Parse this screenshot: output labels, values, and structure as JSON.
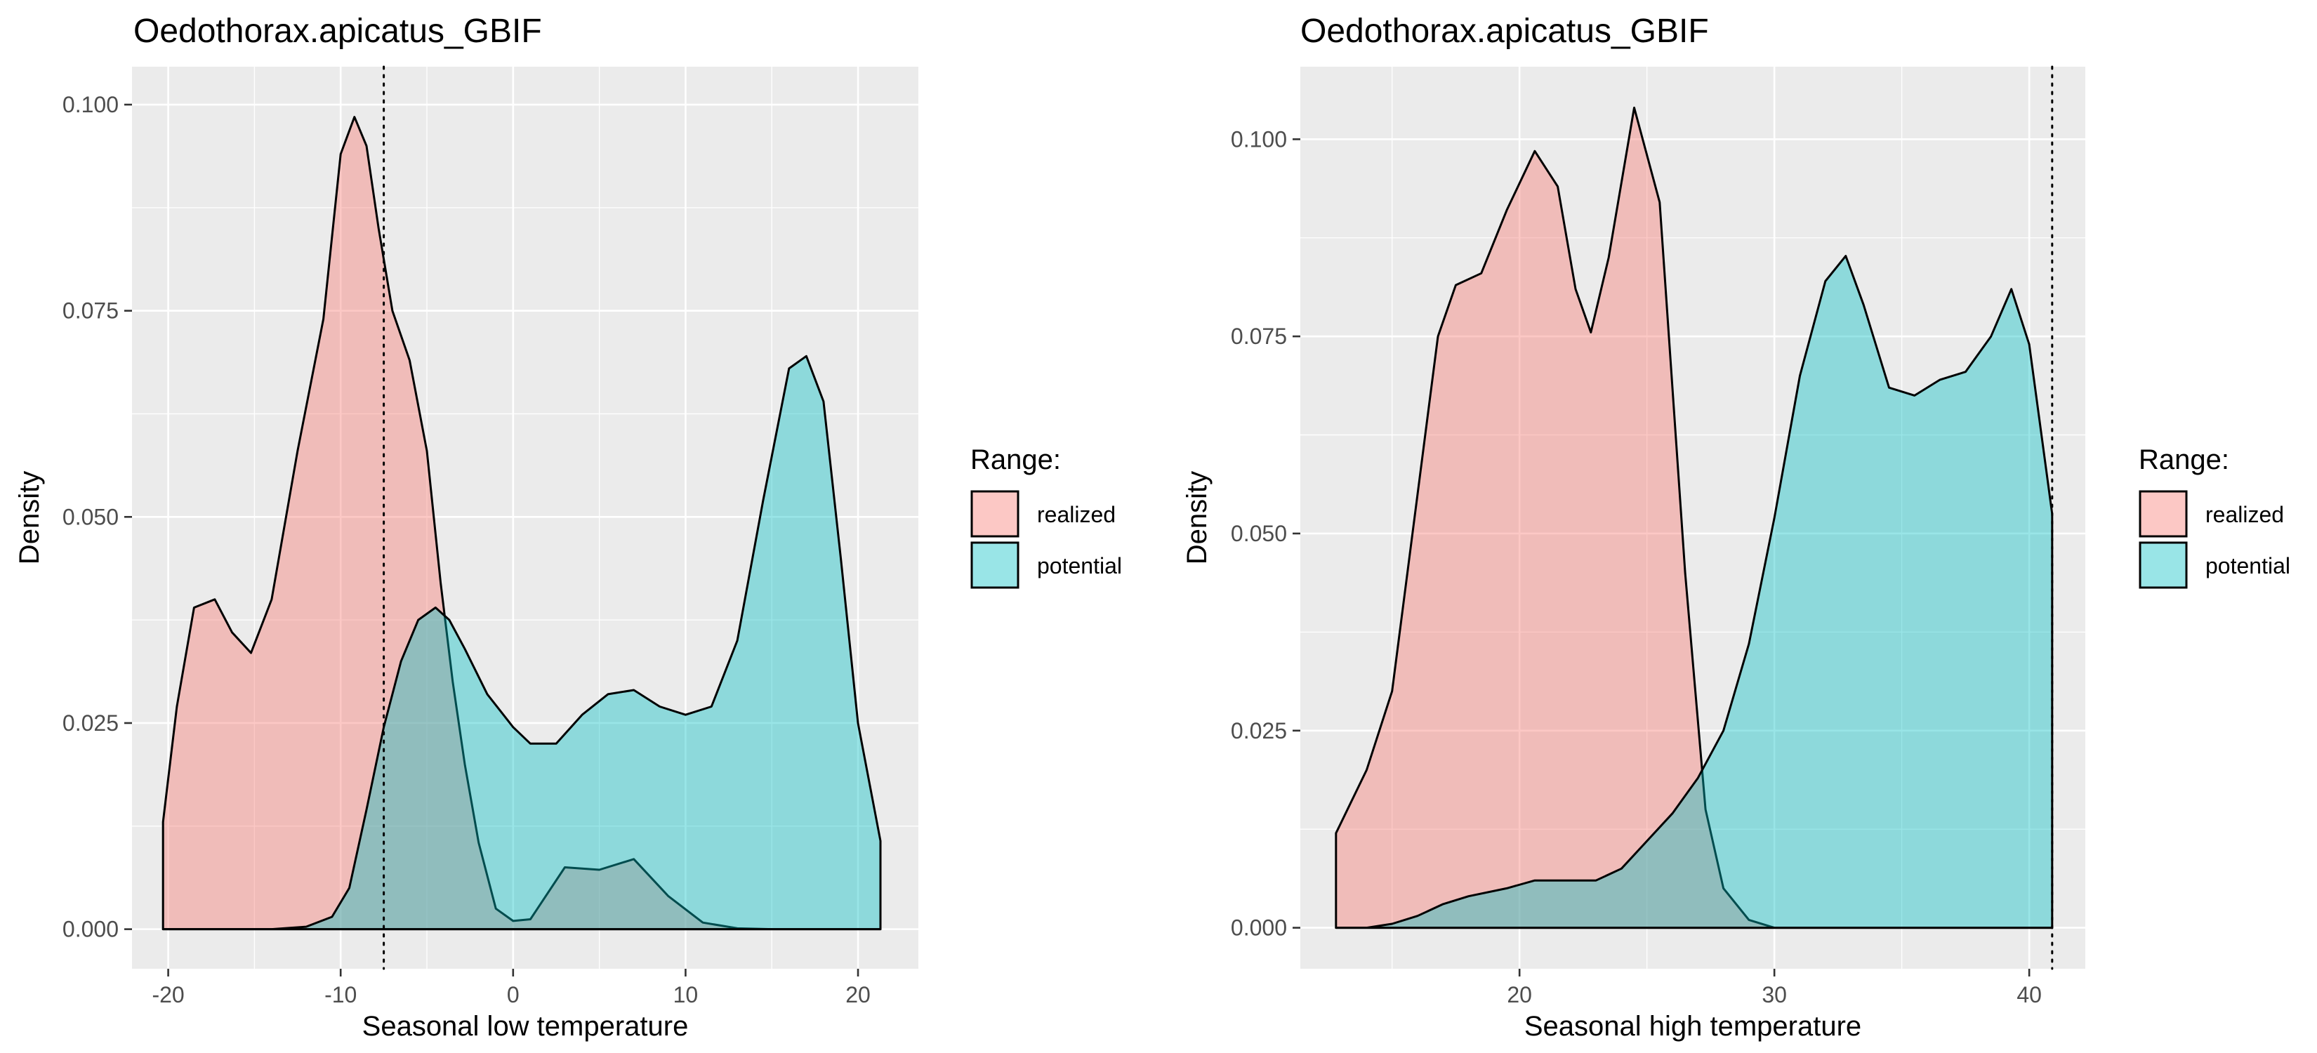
{
  "colors": {
    "realized": "#F8766D",
    "potential": "#00BFC4",
    "panel": "#EBEBEB",
    "grid": "#FFFFFF"
  },
  "chart_data": [
    {
      "type": "area",
      "title": "Oedothorax.apicatus_GBIF",
      "xlabel": "Seasonal low temperature",
      "ylabel": "Density",
      "xlim": [
        -22.1,
        23.5
      ],
      "ylim": [
        -0.0048,
        0.1046
      ],
      "x_ticks": [
        -20,
        -10,
        0,
        10,
        20
      ],
      "x_tick_labels": [
        "-20",
        "-10",
        "0",
        "10",
        "20"
      ],
      "y_ticks": [
        0,
        0.025,
        0.05,
        0.075,
        0.1
      ],
      "y_tick_labels": [
        "0.000",
        "0.025",
        "0.050",
        "0.075",
        "0.100"
      ],
      "grid": true,
      "vline": -7.5,
      "legend": {
        "title": "Range:",
        "position": "right",
        "entries": [
          "realized",
          "potential"
        ]
      },
      "series": [
        {
          "name": "realized",
          "x": [
            -20.3,
            -19.5,
            -18.5,
            -17.3,
            -16.3,
            -15.2,
            -14,
            -12.5,
            -11,
            -10,
            -9.2,
            -8.5,
            -7.8,
            -7,
            -6,
            -5,
            -4.2,
            -3.5,
            -2.8,
            -2,
            -1,
            0,
            1,
            3,
            5,
            7,
            9,
            11,
            13,
            15,
            17,
            19,
            21.3
          ],
          "y": [
            0.013,
            0.027,
            0.039,
            0.04,
            0.036,
            0.0335,
            0.04,
            0.058,
            0.074,
            0.094,
            0.0985,
            0.095,
            0.085,
            0.075,
            0.069,
            0.058,
            0.042,
            0.03,
            0.02,
            0.0105,
            0.0025,
            0.001,
            0.0012,
            0.0075,
            0.0072,
            0.0085,
            0.004,
            0.0008,
            0.0001,
            0,
            0,
            0,
            0
          ]
        },
        {
          "name": "potential",
          "x": [
            -20.3,
            -16,
            -14,
            -12,
            -10.5,
            -9.5,
            -8.5,
            -7.5,
            -6.5,
            -5.5,
            -4.5,
            -3.7,
            -2.8,
            -1.5,
            0,
            1,
            2.5,
            4,
            5.5,
            7,
            8.5,
            10,
            11.5,
            13,
            14.5,
            16,
            17,
            18,
            19,
            20,
            21.3
          ],
          "y": [
            0,
            0,
            0,
            0.0003,
            0.0015,
            0.005,
            0.0145,
            0.0245,
            0.0325,
            0.0375,
            0.039,
            0.0375,
            0.034,
            0.0285,
            0.0245,
            0.0225,
            0.0225,
            0.026,
            0.0285,
            0.029,
            0.027,
            0.026,
            0.027,
            0.035,
            0.052,
            0.068,
            0.0695,
            0.064,
            0.045,
            0.025,
            0.0107
          ]
        }
      ]
    },
    {
      "type": "area",
      "title": "Oedothorax.apicatus_GBIF",
      "xlabel": "Seasonal high temperature",
      "ylabel": "Density",
      "xlim": [
        11.4,
        42.2
      ],
      "ylim": [
        -0.0052,
        0.1092
      ],
      "x_ticks": [
        20,
        30,
        40
      ],
      "x_tick_labels": [
        "20",
        "30",
        "40"
      ],
      "y_ticks": [
        0,
        0.025,
        0.05,
        0.075,
        0.1
      ],
      "y_tick_labels": [
        "0.000",
        "0.025",
        "0.050",
        "0.075",
        "0.100"
      ],
      "grid": true,
      "vline": 40.9,
      "legend": {
        "title": "Range:",
        "position": "right",
        "entries": [
          "realized",
          "potential"
        ]
      },
      "series": [
        {
          "name": "realized",
          "x": [
            12.8,
            14,
            15,
            16,
            16.8,
            17.5,
            18.5,
            19.5,
            20.6,
            21.5,
            22.2,
            22.8,
            23.5,
            24.5,
            25.5,
            26.5,
            27.3,
            28,
            29,
            30,
            32,
            35,
            40.9
          ],
          "y": [
            0.012,
            0.02,
            0.03,
            0.055,
            0.075,
            0.0815,
            0.083,
            0.091,
            0.0985,
            0.094,
            0.081,
            0.0755,
            0.085,
            0.104,
            0.092,
            0.045,
            0.015,
            0.005,
            0.001,
            0,
            0,
            0,
            0
          ]
        },
        {
          "name": "potential",
          "x": [
            12.8,
            14,
            15,
            16,
            17,
            18,
            19.5,
            20.6,
            22,
            23,
            24,
            25,
            26,
            27,
            28,
            29,
            30,
            31,
            32,
            32.8,
            33.5,
            34.5,
            35.5,
            36.5,
            37.5,
            38.5,
            39.3,
            40,
            40.9
          ],
          "y": [
            0,
            0,
            0.0005,
            0.0015,
            0.003,
            0.004,
            0.005,
            0.006,
            0.006,
            0.006,
            0.0075,
            0.011,
            0.0145,
            0.019,
            0.025,
            0.036,
            0.052,
            0.07,
            0.082,
            0.0852,
            0.079,
            0.0685,
            0.0675,
            0.0695,
            0.0705,
            0.075,
            0.081,
            0.074,
            0.0525
          ]
        }
      ]
    }
  ]
}
